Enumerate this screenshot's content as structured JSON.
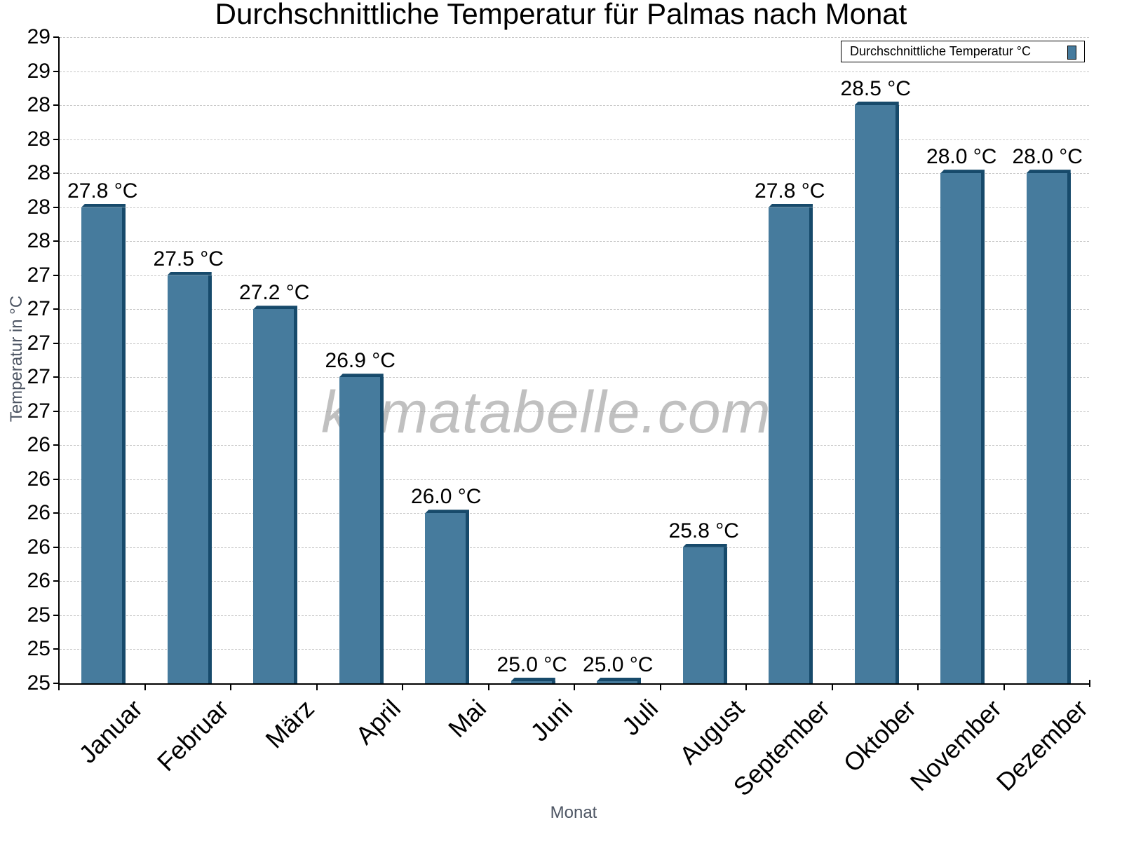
{
  "chart_data": {
    "type": "bar",
    "title": "Durchschnittliche Temperatur für Palmas nach Monat",
    "xlabel": "Monat",
    "ylabel": "Temperatur in °C",
    "ylim": [
      25,
      29
    ],
    "grid": true,
    "legend_position": "top-right",
    "categories": [
      "Januar",
      "Februar",
      "März",
      "April",
      "Mai",
      "Juni",
      "Juli",
      "August",
      "September",
      "Oktober",
      "November",
      "Dezember"
    ],
    "series": [
      {
        "name": "Durchschnittliche Temperatur °C",
        "color": "#467b9d",
        "values": [
          27.8,
          27.5,
          27.2,
          26.9,
          26.0,
          25.0,
          25.0,
          25.8,
          27.8,
          28.5,
          28.0,
          28.0
        ]
      }
    ],
    "value_labels": [
      "27.8 °C",
      "27.5 °C",
      "27.2 °C",
      "26.9 °C",
      "26.0 °C",
      "25.0 °C",
      "25.0 °C",
      "25.8 °C",
      "27.8 °C",
      "28.5 °C",
      "28.0 °C",
      "28.0 °C"
    ],
    "ytick_labels": [
      "29",
      "29",
      "28",
      "28",
      "28",
      "28",
      "28",
      "27",
      "27",
      "27",
      "27",
      "27",
      "26",
      "26",
      "26",
      "26",
      "26",
      "25",
      "25",
      "25"
    ],
    "watermark": "klimatabelle.com"
  },
  "colors": {
    "bar": "#467b9d",
    "bar_edge": "#174a6b",
    "grid": "#c8c8c8",
    "axis_title": "#4d5563"
  }
}
